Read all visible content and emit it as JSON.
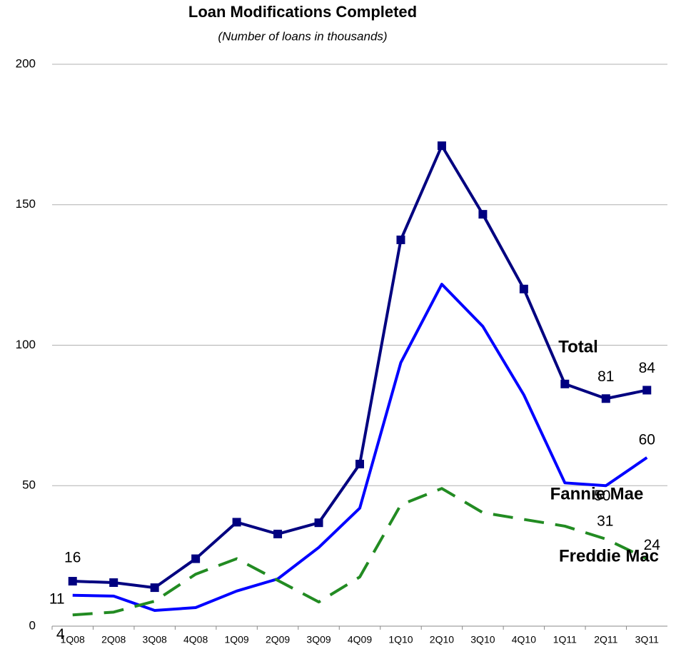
{
  "chart_data": {
    "type": "line",
    "title": "Loan Modifications Completed",
    "subtitle": "(Number of loans in thousands)",
    "categories": [
      "1Q08",
      "2Q08",
      "3Q08",
      "4Q08",
      "1Q09",
      "2Q09",
      "3Q09",
      "4Q09",
      "1Q10",
      "2Q10",
      "3Q10",
      "4Q10",
      "1Q11",
      "2Q11",
      "3Q11"
    ],
    "ylim": [
      0,
      200
    ],
    "yticks": [
      0,
      50,
      100,
      150,
      200
    ],
    "grid": true,
    "series": [
      {
        "name": "Total",
        "color": "#000080",
        "marker": "square",
        "dash": false,
        "values": [
          16,
          15.5,
          13.7,
          24,
          37,
          32.8,
          36.8,
          57.7,
          137.5,
          171,
          146.6,
          120,
          86.2,
          81,
          84
        ],
        "value_labels": [
          "16",
          null,
          null,
          null,
          null,
          null,
          null,
          null,
          null,
          null,
          null,
          null,
          null,
          "81",
          "84"
        ]
      },
      {
        "name": "Fannie Mae",
        "color": "#0000ff",
        "marker": null,
        "dash": false,
        "values": [
          11,
          10.7,
          5.6,
          6.6,
          12.5,
          16.8,
          28,
          42,
          93.8,
          121.7,
          106.7,
          82.3,
          51,
          50,
          60
        ],
        "value_labels": [
          "11",
          null,
          null,
          null,
          null,
          null,
          null,
          null,
          null,
          null,
          null,
          null,
          null,
          "50",
          "60"
        ]
      },
      {
        "name": "Freddie Mac",
        "color": "#228b22",
        "marker": null,
        "dash": true,
        "values": [
          4,
          5,
          8.9,
          18.5,
          24,
          16.3,
          8.6,
          17.5,
          43.2,
          49,
          40.4,
          38,
          35.6,
          31,
          24
        ],
        "value_labels": [
          "4",
          null,
          null,
          null,
          null,
          null,
          null,
          null,
          null,
          null,
          null,
          null,
          null,
          "31",
          "24"
        ]
      }
    ]
  }
}
